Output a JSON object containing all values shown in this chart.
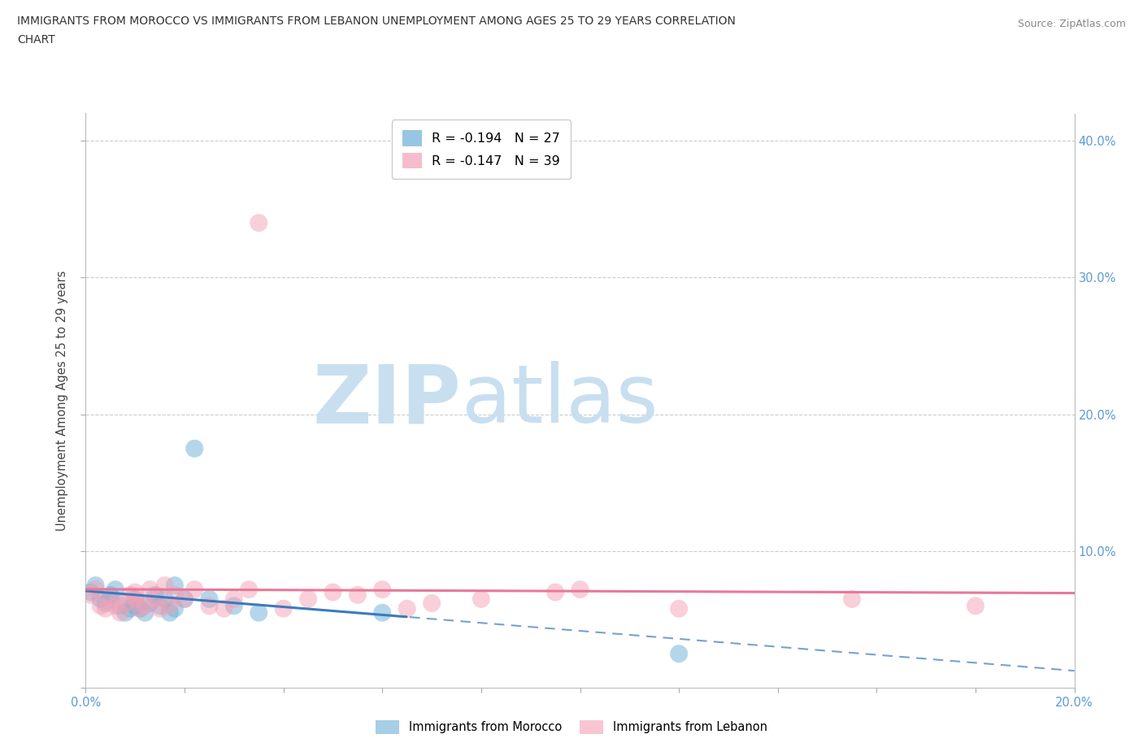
{
  "title_line1": "IMMIGRANTS FROM MOROCCO VS IMMIGRANTS FROM LEBANON UNEMPLOYMENT AMONG AGES 25 TO 29 YEARS CORRELATION",
  "title_line2": "CHART",
  "source": "Source: ZipAtlas.com",
  "ylabel": "Unemployment Among Ages 25 to 29 years",
  "xlim": [
    0.0,
    0.2
  ],
  "ylim": [
    0.0,
    0.42
  ],
  "yticks": [
    0.0,
    0.1,
    0.2,
    0.3,
    0.4
  ],
  "ytick_labels": [
    "",
    "10.0%",
    "20.0%",
    "30.0%",
    "40.0%"
  ],
  "xticks": [
    0.0,
    0.02,
    0.04,
    0.06,
    0.08,
    0.1,
    0.12,
    0.14,
    0.16,
    0.18,
    0.2
  ],
  "xtick_labels": [
    "0.0%",
    "",
    "",
    "",
    "",
    "",
    "",
    "",
    "",
    "",
    "20.0%"
  ],
  "morocco_color": "#6baed6",
  "lebanon_color": "#f4a0b5",
  "morocco_line_color": "#3a7abf",
  "lebanon_line_color": "#e8789a",
  "morocco_R": -0.194,
  "morocco_N": 27,
  "lebanon_R": -0.147,
  "lebanon_N": 39,
  "watermark_zip": "ZIP",
  "watermark_atlas": "atlas",
  "watermark_color_zip": "#c8dff0",
  "watermark_color_atlas": "#c8dff0",
  "background_color": "#ffffff",
  "grid_color": "#cccccc",
  "morocco_x": [
    0.001,
    0.002,
    0.003,
    0.004,
    0.005,
    0.006,
    0.007,
    0.008,
    0.009,
    0.01,
    0.01,
    0.011,
    0.012,
    0.013,
    0.014,
    0.015,
    0.016,
    0.017,
    0.018,
    0.018,
    0.02,
    0.022,
    0.025,
    0.03,
    0.035,
    0.06,
    0.12
  ],
  "morocco_y": [
    0.07,
    0.075,
    0.065,
    0.062,
    0.068,
    0.072,
    0.06,
    0.055,
    0.058,
    0.065,
    0.06,
    0.058,
    0.055,
    0.062,
    0.068,
    0.06,
    0.065,
    0.055,
    0.058,
    0.075,
    0.065,
    0.175,
    0.065,
    0.06,
    0.055,
    0.055,
    0.025
  ],
  "lebanon_x": [
    0.001,
    0.002,
    0.003,
    0.004,
    0.005,
    0.006,
    0.007,
    0.008,
    0.009,
    0.01,
    0.01,
    0.011,
    0.012,
    0.013,
    0.014,
    0.015,
    0.016,
    0.017,
    0.018,
    0.02,
    0.022,
    0.025,
    0.028,
    0.03,
    0.033,
    0.035,
    0.04,
    0.045,
    0.05,
    0.055,
    0.06,
    0.065,
    0.07,
    0.08,
    0.095,
    0.1,
    0.12,
    0.155,
    0.18
  ],
  "lebanon_y": [
    0.068,
    0.072,
    0.06,
    0.058,
    0.065,
    0.06,
    0.055,
    0.062,
    0.068,
    0.07,
    0.065,
    0.058,
    0.06,
    0.072,
    0.065,
    0.058,
    0.075,
    0.06,
    0.068,
    0.065,
    0.072,
    0.06,
    0.058,
    0.065,
    0.072,
    0.34,
    0.058,
    0.065,
    0.07,
    0.068,
    0.072,
    0.058,
    0.062,
    0.065,
    0.07,
    0.072,
    0.058,
    0.065,
    0.06
  ]
}
